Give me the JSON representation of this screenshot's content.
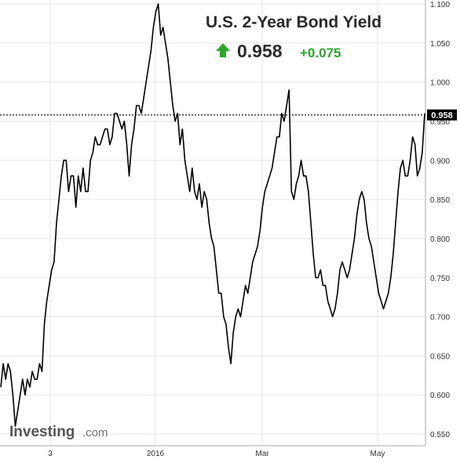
{
  "chart_data": {
    "type": "line",
    "title": "U.S. 2-Year Bond Yield",
    "last_value": "0.958",
    "change": "+0.075",
    "change_direction": "up",
    "xlabel": "",
    "ylabel": "",
    "x_ticks": [
      "3",
      "2016",
      "Mar",
      "May"
    ],
    "y_ticks": [
      "0.550",
      "0.600",
      "0.650",
      "0.700",
      "0.750",
      "0.800",
      "0.850",
      "0.900",
      "0.950",
      "1.000",
      "1.050",
      "1.100"
    ],
    "ylim": [
      0.535,
      1.105
    ],
    "grid": true,
    "current_price_label": "0.958",
    "series": [
      {
        "values": [
          0.61,
          0.64,
          0.62,
          0.64,
          0.63,
          0.6,
          0.56,
          0.58,
          0.6,
          0.62,
          0.6,
          0.62,
          0.61,
          0.63,
          0.62,
          0.62,
          0.64,
          0.63,
          0.69,
          0.72,
          0.74,
          0.76,
          0.77,
          0.82,
          0.85,
          0.88,
          0.9,
          0.9,
          0.86,
          0.88,
          0.88,
          0.84,
          0.88,
          0.86,
          0.89,
          0.86,
          0.86,
          0.9,
          0.91,
          0.93,
          0.92,
          0.92,
          0.93,
          0.94,
          0.94,
          0.92,
          0.93,
          0.96,
          0.96,
          0.95,
          0.94,
          0.95,
          0.92,
          0.88,
          0.92,
          0.94,
          0.97,
          0.97,
          0.96,
          0.98,
          1.0,
          1.02,
          1.04,
          1.07,
          1.09,
          1.1,
          1.06,
          1.07,
          1.05,
          1.03,
          1.0,
          0.97,
          0.95,
          0.96,
          0.92,
          0.94,
          0.9,
          0.88,
          0.86,
          0.89,
          0.86,
          0.85,
          0.87,
          0.84,
          0.86,
          0.85,
          0.82,
          0.8,
          0.79,
          0.76,
          0.73,
          0.73,
          0.7,
          0.69,
          0.66,
          0.64,
          0.68,
          0.7,
          0.71,
          0.7,
          0.72,
          0.74,
          0.73,
          0.75,
          0.77,
          0.78,
          0.79,
          0.81,
          0.84,
          0.86,
          0.87,
          0.88,
          0.89,
          0.91,
          0.93,
          0.93,
          0.96,
          0.95,
          0.97,
          0.99,
          0.86,
          0.85,
          0.87,
          0.88,
          0.9,
          0.88,
          0.88,
          0.86,
          0.82,
          0.78,
          0.75,
          0.75,
          0.76,
          0.74,
          0.74,
          0.72,
          0.71,
          0.7,
          0.71,
          0.73,
          0.76,
          0.77,
          0.76,
          0.75,
          0.76,
          0.78,
          0.8,
          0.83,
          0.85,
          0.86,
          0.85,
          0.82,
          0.8,
          0.79,
          0.77,
          0.75,
          0.73,
          0.72,
          0.71,
          0.72,
          0.73,
          0.75,
          0.78,
          0.82,
          0.86,
          0.89,
          0.9,
          0.88,
          0.88,
          0.9,
          0.93,
          0.92,
          0.88,
          0.89,
          0.91,
          0.96
        ]
      }
    ]
  },
  "branding": {
    "logo_word": "Investing",
    "logo_suffix": ".com"
  },
  "colors": {
    "line": "#000000",
    "grid": "#e5e5e5",
    "up_green": "#2aa829",
    "title": "#2b2b2b",
    "price_tag_bg": "#000000",
    "price_tag_text": "#ffffff",
    "axis": "#aaaaaa"
  },
  "icons": {
    "change_arrow": "up-arrow-icon"
  }
}
